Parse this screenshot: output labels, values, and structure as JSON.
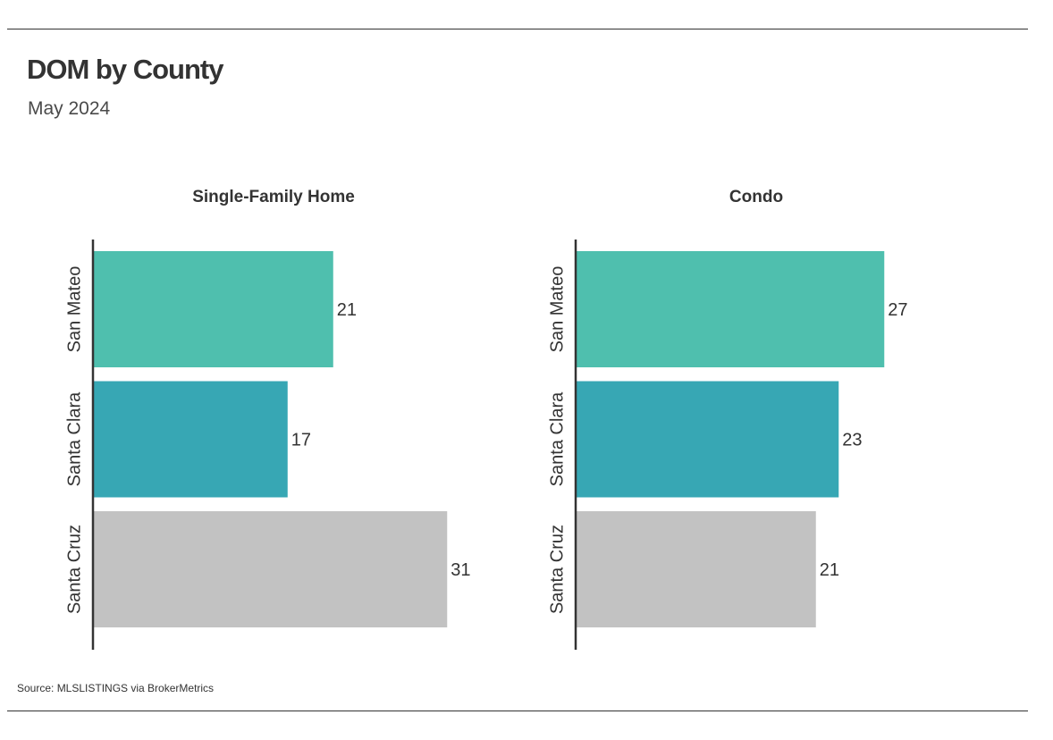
{
  "title": "DOM by County",
  "subtitle": "May 2024",
  "source": "Source:  MLSLISTINGS via BrokerMetrics",
  "colors": {
    "San Mateo": "#4fbfae",
    "Santa Clara": "#37a7b4",
    "Santa Cruz": "#c2c2c2",
    "axis": "#333333",
    "rule": "#333333"
  },
  "chart_data": [
    {
      "type": "bar",
      "orientation": "horizontal",
      "title": "Single-Family Home",
      "categories": [
        "San Mateo",
        "Santa Clara",
        "Santa Cruz"
      ],
      "values": [
        21,
        17,
        31
      ],
      "data_labels": [
        "21",
        "17",
        "31"
      ],
      "grid": false,
      "legend": "none"
    },
    {
      "type": "bar",
      "orientation": "horizontal",
      "title": "Condo",
      "categories": [
        "San Mateo",
        "Santa Clara",
        "Santa Cruz"
      ],
      "values": [
        27,
        23,
        21
      ],
      "data_labels": [
        "27",
        "23",
        "21"
      ],
      "grid": false,
      "legend": "none"
    }
  ]
}
